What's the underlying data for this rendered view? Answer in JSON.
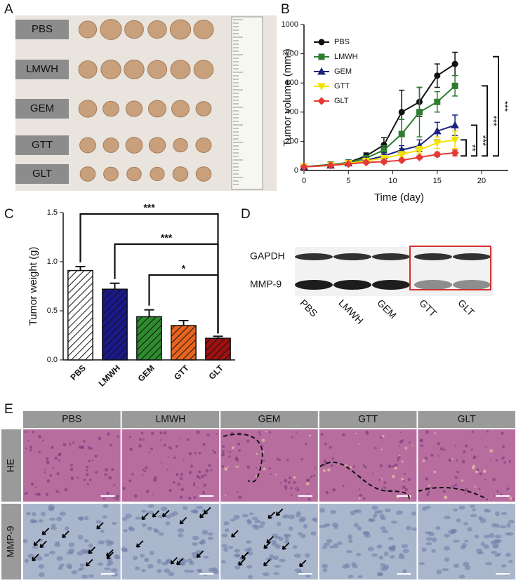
{
  "panel_letters": [
    "A",
    "B",
    "C",
    "D",
    "E"
  ],
  "panel_a": {
    "groups": [
      "PBS",
      "LMWH",
      "GEM",
      "GTT",
      "GLT"
    ]
  },
  "chart_data": [
    {
      "type": "line",
      "xlabel": "Time (day)",
      "ylabel": "Tumor volume (mm³)",
      "x": [
        0,
        3,
        5,
        7,
        9,
        11,
        13,
        15,
        17
      ],
      "xlim": [
        0,
        23
      ],
      "xticks": [
        0,
        5,
        10,
        15,
        20
      ],
      "ylim": [
        0,
        1000
      ],
      "yticks": [
        0,
        200,
        400,
        600,
        800,
        1000
      ],
      "legend": "upper left",
      "series": [
        {
          "name": "PBS",
          "color": "#111111",
          "marker": "circle",
          "values": [
            25,
            40,
            55,
            100,
            175,
            400,
            470,
            650,
            730
          ],
          "errors": [
            0,
            10,
            10,
            20,
            50,
            150,
            100,
            80,
            80
          ]
        },
        {
          "name": "LMWH",
          "color": "#2e7d32",
          "marker": "square",
          "values": [
            25,
            40,
            55,
            85,
            140,
            250,
            400,
            470,
            580
          ],
          "errors": [
            0,
            10,
            10,
            15,
            30,
            100,
            170,
            70,
            70
          ]
        },
        {
          "name": "GEM",
          "color": "#1a237e",
          "marker": "triangle",
          "values": [
            25,
            35,
            50,
            70,
            100,
            140,
            170,
            270,
            310
          ],
          "errors": [
            0,
            5,
            5,
            10,
            20,
            30,
            40,
            60,
            70
          ]
        },
        {
          "name": "GTT",
          "color": "#f2e200",
          "marker": "triangle-down",
          "values": [
            25,
            35,
            50,
            65,
            85,
            110,
            140,
            190,
            210
          ],
          "errors": [
            0,
            5,
            5,
            8,
            15,
            20,
            25,
            40,
            60
          ]
        },
        {
          "name": "GLT",
          "color": "#e53935",
          "marker": "diamond",
          "values": [
            25,
            35,
            45,
            55,
            60,
            70,
            90,
            110,
            120
          ],
          "errors": [
            0,
            5,
            5,
            5,
            10,
            10,
            10,
            15,
            20
          ]
        }
      ],
      "annotations": [
        "**",
        "***",
        "***",
        "***"
      ]
    },
    {
      "type": "bar",
      "ylabel": "Tumor weight (g)",
      "categories": [
        "PBS",
        "LMWH",
        "GEM",
        "GTT",
        "GLT"
      ],
      "values": [
        0.91,
        0.72,
        0.44,
        0.35,
        0.22
      ],
      "errors": [
        0.04,
        0.06,
        0.07,
        0.05,
        0.02
      ],
      "colors": [
        "#ffffff",
        "#1a1a8c",
        "#2e8b2e",
        "#e8641e",
        "#a01010"
      ],
      "hatch": true,
      "ylim": [
        0,
        1.5
      ],
      "yticks": [
        {
          "value": 0,
          "label": "0.0"
        },
        0.5,
        {
          "value": 1,
          "label": "1.0"
        },
        1.5
      ],
      "annotations": [
        "***",
        "***",
        "*"
      ]
    }
  ],
  "panel_d": {
    "rows": [
      "GAPDH",
      "MMP-9"
    ],
    "lanes": [
      "PBS",
      "LMWH",
      "GEM",
      "GTT",
      "GLT"
    ]
  },
  "panel_e": {
    "columns": [
      "PBS",
      "LMWH",
      "GEM",
      "GTT",
      "GLT"
    ],
    "rows": [
      "HE",
      "MMP-9"
    ]
  }
}
